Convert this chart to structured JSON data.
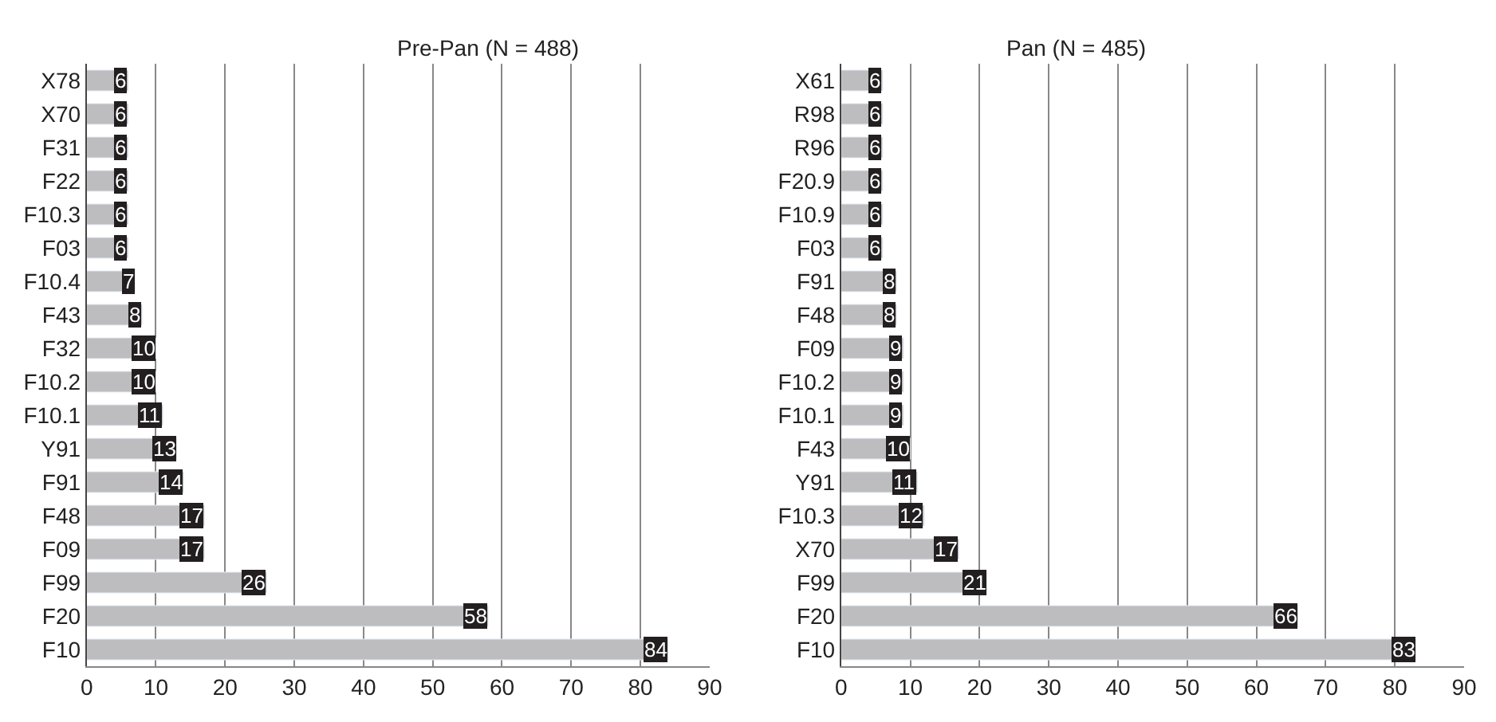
{
  "chart_data": [
    {
      "type": "bar",
      "orientation": "horizontal",
      "title": "Pre-Pan (N = 488)",
      "categories": [
        "X78",
        "X70",
        "F31",
        "F22",
        "F10.3",
        "F03",
        "F10.4",
        "F43",
        "F32",
        "F10.2",
        "F10.1",
        "Y91",
        "F91",
        "F48",
        "F09",
        "F99",
        "F20",
        "F10"
      ],
      "values": [
        6,
        6,
        6,
        6,
        6,
        6,
        7,
        8,
        10,
        10,
        11,
        13,
        14,
        17,
        17,
        26,
        58,
        84
      ],
      "color": "#bdbdbf",
      "xlim": [
        0,
        90
      ],
      "xticks": [
        0,
        10,
        20,
        30,
        40,
        50,
        60,
        70,
        80,
        90
      ],
      "grid": "x",
      "data_labels": true
    },
    {
      "type": "bar",
      "orientation": "horizontal",
      "title": "Pan (N = 485)",
      "categories": [
        "X61",
        "R98",
        "R96",
        "F20.9",
        "F10.9",
        "F03",
        "F91",
        "F48",
        "F09",
        "F10.2",
        "F10.1",
        "F43",
        "Y91",
        "F10.3",
        "X70",
        "F99",
        "F20",
        "F10"
      ],
      "values": [
        6,
        6,
        6,
        6,
        6,
        6,
        8,
        8,
        9,
        9,
        9,
        10,
        11,
        12,
        17,
        21,
        66,
        83
      ],
      "color": "#bdbdbf",
      "xlim": [
        0,
        90
      ],
      "xticks": [
        0,
        10,
        20,
        30,
        40,
        50,
        60,
        70,
        80,
        90
      ],
      "grid": "x",
      "data_labels": true
    }
  ]
}
